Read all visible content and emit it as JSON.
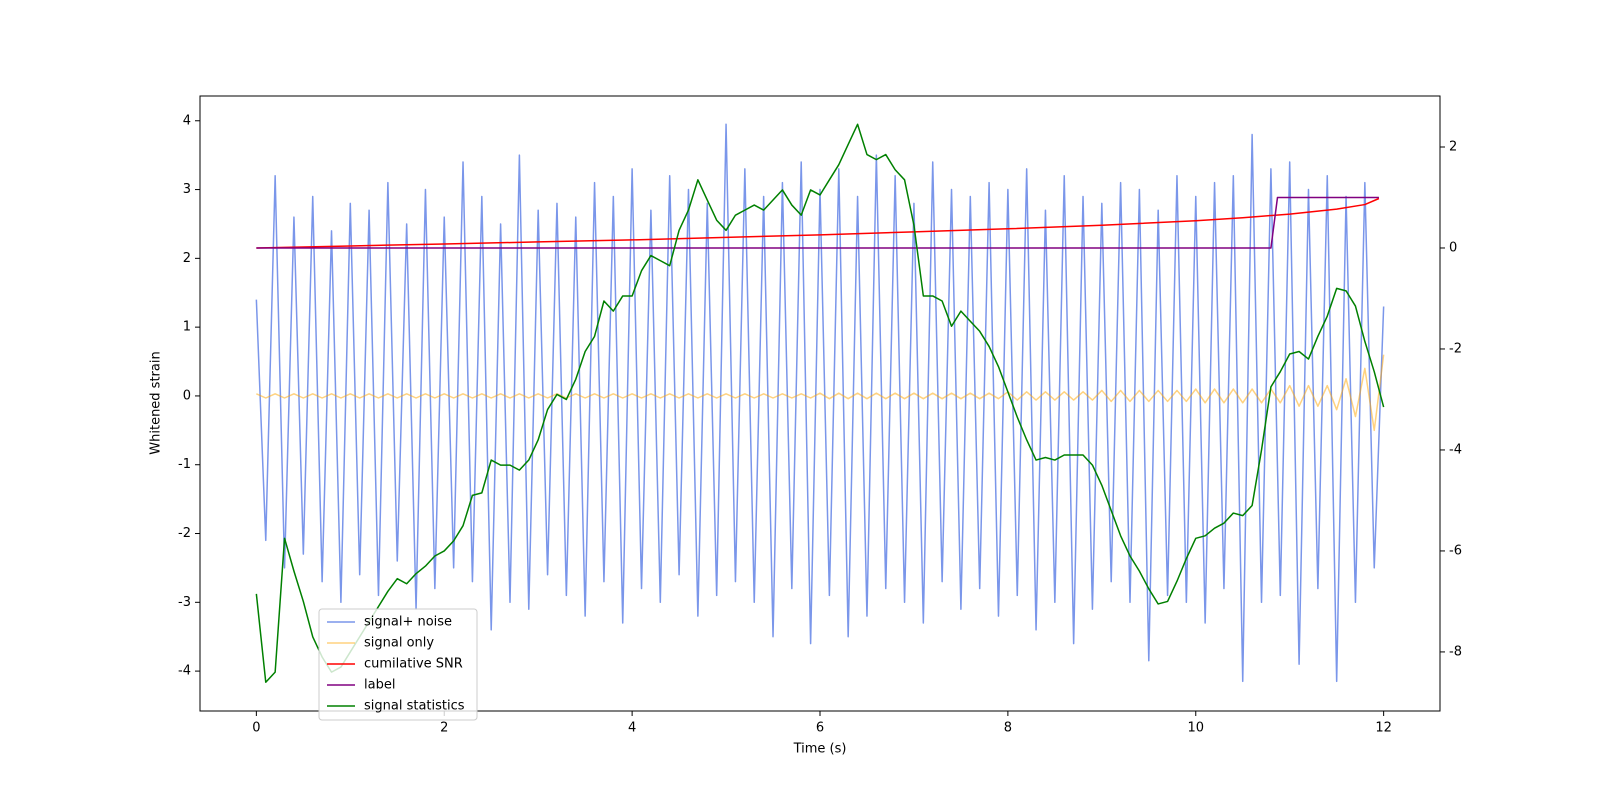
{
  "chart_data": {
    "type": "line",
    "xlabel": "Time (s)",
    "ylabel": "Whitened strain",
    "xlim": [
      -0.6,
      12.6
    ],
    "xticks": [
      0,
      2,
      4,
      6,
      8,
      10,
      12
    ],
    "ylim": [
      -4.58,
      4.36
    ],
    "yticks": [
      -4,
      -3,
      -2,
      -1,
      0,
      1,
      2,
      3,
      4
    ],
    "y2lim": [
      -9.17,
      3.01
    ],
    "y2ticks": [
      -8,
      -6,
      -4,
      -2,
      0,
      2
    ],
    "legend": "lower left",
    "x": [
      0,
      0.1,
      0.2,
      0.3,
      0.4,
      0.5,
      0.6,
      0.7,
      0.8,
      0.9,
      1,
      1.1,
      1.2,
      1.3,
      1.4,
      1.5,
      1.6,
      1.7,
      1.8,
      1.9,
      2,
      2.1,
      2.2,
      2.3,
      2.4,
      2.5,
      2.6,
      2.7,
      2.8,
      2.9,
      3,
      3.1,
      3.2,
      3.3,
      3.4,
      3.5,
      3.6,
      3.7,
      3.8,
      3.9,
      4,
      4.1,
      4.2,
      4.3,
      4.4,
      4.5,
      4.6,
      4.7,
      4.8,
      4.9,
      5,
      5.1,
      5.2,
      5.3,
      5.4,
      5.5,
      5.6,
      5.7,
      5.8,
      5.9,
      6,
      6.1,
      6.2,
      6.3,
      6.4,
      6.5,
      6.6,
      6.7,
      6.8,
      6.9,
      7,
      7.1,
      7.2,
      7.3,
      7.4,
      7.5,
      7.6,
      7.7,
      7.8,
      7.9,
      8,
      8.1,
      8.2,
      8.3,
      8.4,
      8.5,
      8.6,
      8.7,
      8.8,
      8.9,
      9,
      9.1,
      9.2,
      9.3,
      9.4,
      9.5,
      9.6,
      9.7,
      9.8,
      9.9,
      10,
      10.1,
      10.2,
      10.3,
      10.4,
      10.5,
      10.6,
      10.7,
      10.8,
      10.9,
      11,
      11.1,
      11.2,
      11.3,
      11.4,
      11.5,
      11.6,
      11.7,
      11.8,
      11.9,
      12
    ],
    "series": [
      {
        "name": "signal+ noise",
        "color": "#4169e1",
        "alpha": 0.7,
        "values": [
          1.4,
          -2.1,
          3.2,
          -2.5,
          2.6,
          -2.3,
          2.9,
          -2.7,
          2.4,
          -3.0,
          2.8,
          -2.6,
          2.7,
          -2.9,
          3.1,
          -2.4,
          2.5,
          -3.1,
          3.0,
          -2.8,
          2.6,
          -2.5,
          3.4,
          -2.7,
          2.9,
          -3.4,
          2.5,
          -3.0,
          3.5,
          -3.1,
          2.7,
          -2.6,
          2.8,
          -2.9,
          2.6,
          -3.2,
          3.1,
          -2.7,
          2.9,
          -3.3,
          3.3,
          -2.8,
          2.7,
          -3.0,
          3.2,
          -2.6,
          3.0,
          -3.2,
          2.8,
          -2.9,
          3.95,
          -2.7,
          3.3,
          -3.0,
          2.9,
          -3.5,
          3.1,
          -2.8,
          3.4,
          -3.6,
          3.0,
          -2.9,
          3.3,
          -3.5,
          2.9,
          -3.2,
          3.5,
          -2.8,
          3.2,
          -3.0,
          2.8,
          -3.3,
          3.4,
          -2.7,
          3.0,
          -3.1,
          2.9,
          -2.8,
          3.1,
          -3.2,
          3.0,
          -2.9,
          3.3,
          -3.4,
          2.7,
          -3.0,
          3.2,
          -3.6,
          2.9,
          -3.1,
          2.8,
          -2.7,
          3.1,
          -3.0,
          3.0,
          -3.85,
          2.7,
          -2.9,
          3.2,
          -3.0,
          2.9,
          -3.3,
          3.1,
          -2.8,
          3.2,
          -4.15,
          3.8,
          -3.0,
          3.3,
          -2.9,
          3.4,
          -3.9,
          3.0,
          -2.8,
          3.2,
          -4.15,
          2.9,
          -3.0,
          3.1,
          -2.5,
          1.3
        ]
      },
      {
        "name": "signal only",
        "color": "orange",
        "alpha": 0.5,
        "values": [
          0.03,
          -0.03,
          0.03,
          -0.03,
          0.03,
          -0.03,
          0.03,
          -0.03,
          0.03,
          -0.03,
          0.03,
          -0.03,
          0.03,
          -0.03,
          0.03,
          -0.03,
          0.03,
          -0.03,
          0.03,
          -0.03,
          0.03,
          -0.03,
          0.03,
          -0.03,
          0.03,
          -0.03,
          0.03,
          -0.03,
          0.03,
          -0.03,
          0.03,
          -0.03,
          0.03,
          -0.03,
          0.03,
          -0.03,
          0.03,
          -0.03,
          0.03,
          -0.03,
          0.03,
          -0.03,
          0.03,
          -0.03,
          0.03,
          -0.03,
          0.03,
          -0.03,
          0.03,
          -0.03,
          0.03,
          -0.03,
          0.03,
          -0.03,
          0.03,
          -0.03,
          0.03,
          -0.03,
          0.03,
          -0.03,
          0.04,
          -0.04,
          0.04,
          -0.04,
          0.04,
          -0.04,
          0.04,
          -0.04,
          0.04,
          -0.04,
          0.04,
          -0.04,
          0.04,
          -0.04,
          0.04,
          -0.04,
          0.04,
          -0.04,
          0.04,
          -0.04,
          0.06,
          -0.06,
          0.06,
          -0.06,
          0.06,
          -0.06,
          0.06,
          -0.06,
          0.06,
          -0.06,
          0.08,
          -0.08,
          0.08,
          -0.08,
          0.08,
          -0.08,
          0.08,
          -0.08,
          0.08,
          -0.08,
          0.1,
          -0.1,
          0.1,
          -0.1,
          0.1,
          -0.1,
          0.1,
          -0.1,
          0.1,
          -0.1,
          0.15,
          -0.15,
          0.15,
          -0.15,
          0.15,
          -0.2,
          0.25,
          -0.3,
          0.4,
          -0.5,
          0.6
        ]
      },
      {
        "name": "cumilative SNR",
        "color": "red",
        "alpha": 1,
        "axis": "y2",
        "x": [
          0,
          1,
          2,
          3,
          4,
          5,
          6,
          7,
          8,
          9,
          10,
          10.5,
          11,
          11.5,
          11.8,
          11.95
        ],
        "values": [
          0,
          0.04,
          0.08,
          0.12,
          0.16,
          0.21,
          0.26,
          0.32,
          0.38,
          0.45,
          0.54,
          0.6,
          0.67,
          0.77,
          0.86,
          0.98
        ]
      },
      {
        "name": "label",
        "color": "purple",
        "alpha": 1,
        "axis": "y2",
        "x": [
          0,
          10.8,
          10.87,
          11.95
        ],
        "values": [
          0,
          0,
          1,
          1
        ]
      },
      {
        "name": "signal statistics",
        "color": "green",
        "alpha": 1,
        "axis": "y2",
        "values": [
          -6.85,
          -8.6,
          -8.4,
          -5.75,
          -6.4,
          -7.0,
          -7.7,
          -8.1,
          -8.4,
          -8.3,
          -8.0,
          -7.7,
          -7.4,
          -7.1,
          -6.8,
          -6.55,
          -6.65,
          -6.45,
          -6.3,
          -6.1,
          -6.0,
          -5.8,
          -5.5,
          -4.9,
          -4.85,
          -4.2,
          -4.3,
          -4.3,
          -4.4,
          -4.2,
          -3.8,
          -3.2,
          -2.9,
          -3.0,
          -2.6,
          -2.05,
          -1.75,
          -1.05,
          -1.25,
          -0.95,
          -0.95,
          -0.45,
          -0.15,
          -0.25,
          -0.35,
          0.35,
          0.75,
          1.35,
          0.95,
          0.55,
          0.35,
          0.65,
          0.75,
          0.85,
          0.75,
          0.95,
          1.15,
          0.85,
          0.65,
          1.15,
          1.05,
          1.35,
          1.65,
          2.05,
          2.45,
          1.85,
          1.75,
          1.85,
          1.55,
          1.35,
          0.45,
          -0.95,
          -0.95,
          -1.05,
          -1.55,
          -1.25,
          -1.45,
          -1.65,
          -1.95,
          -2.35,
          -2.85,
          -3.35,
          -3.8,
          -4.2,
          -4.15,
          -4.2,
          -4.1,
          -4.1,
          -4.1,
          -4.3,
          -4.7,
          -5.2,
          -5.7,
          -6.1,
          -6.4,
          -6.75,
          -7.05,
          -7.0,
          -6.6,
          -6.15,
          -5.75,
          -5.7,
          -5.55,
          -5.45,
          -5.25,
          -5.3,
          -5.1,
          -4.0,
          -2.75,
          -2.45,
          -2.1,
          -2.05,
          -2.2,
          -1.75,
          -1.35,
          -0.8,
          -0.85,
          -1.15,
          -1.85,
          -2.45,
          -3.15
        ]
      }
    ]
  }
}
